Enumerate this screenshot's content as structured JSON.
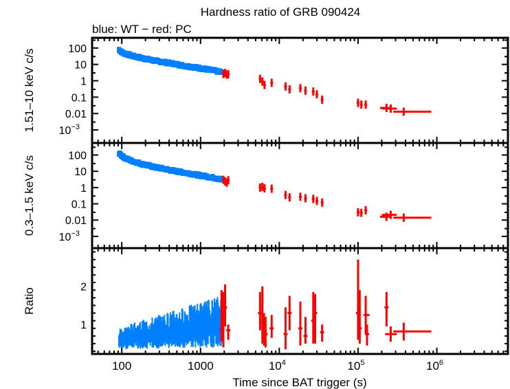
{
  "chart_data": {
    "type": "scatter",
    "title": "Hardness ratio of GRB 090424",
    "subtitle": "blue: WT − red: PC",
    "xlabel": "Time since BAT trigger (s)",
    "xscale": "log",
    "xlim": [
      42,
      8000000
    ],
    "x_ticks": [
      {
        "value": 100,
        "label": "100",
        "sup": ""
      },
      {
        "value": 1000,
        "label": "1000",
        "sup": ""
      },
      {
        "value": 10000,
        "label": "10",
        "sup": "4"
      },
      {
        "value": 100000,
        "label": "10",
        "sup": "5"
      },
      {
        "value": 1000000,
        "label": "10",
        "sup": "6"
      }
    ],
    "colors": {
      "WT": "#0080ff",
      "PC": "#ff0000",
      "frame": "#000000"
    },
    "legend": "top-left (subtitle text)",
    "panels": [
      {
        "name": "hard-band",
        "ylabel": "1.51–10 keV c/s",
        "yscale": "log",
        "ylim": [
          0.00016,
          420
        ],
        "y_ticks": [
          {
            "value": 100,
            "label": "100",
            "sup": ""
          },
          {
            "value": 10,
            "label": "10",
            "sup": ""
          },
          {
            "value": 1,
            "label": "1",
            "sup": ""
          },
          {
            "value": 0.1,
            "label": "0.1",
            "sup": ""
          },
          {
            "value": 0.01,
            "label": "0.01",
            "sup": ""
          },
          {
            "value": 0.001,
            "label": "10",
            "sup": "−3"
          }
        ],
        "series": [
          {
            "name": "WT",
            "x": [
              92,
              100,
              110,
              125,
              140,
              160,
              180,
              200,
              230,
              260,
              300,
              350,
              400,
              460,
              530,
              600,
              700,
              800,
              900,
              1000,
              1150,
              1300,
              1500,
              1700,
              1850
            ],
            "y": [
              80,
              55,
              45,
              38,
              32,
              28,
              24,
              22,
              19,
              17,
              15,
              13.5,
              12,
              11,
              9.5,
              8.5,
              7.5,
              7,
              6.3,
              5.8,
              5.2,
              4.6,
              4.2,
              3.6,
              3.3
            ]
          },
          {
            "name": "PC",
            "x": [
              1950,
              2050,
              2150,
              2250,
              5700,
              6100,
              6500,
              8000,
              12000,
              13500,
              18500,
              21500,
              27000,
              30000,
              35000,
              100000,
              110000,
              125000,
              230000,
              260000,
              380000
            ],
            "y": [
              2.6,
              3.0,
              2.4,
              2.5,
              1.3,
              0.9,
              0.55,
              0.75,
              0.45,
              0.3,
              0.35,
              0.25,
              0.22,
              0.15,
              0.07,
              0.045,
              0.035,
              0.035,
              0.022,
              0.02,
              0.013
            ],
            "xerr_lo": [
              0,
              0,
              0,
              0,
              0,
              0,
              0,
              0,
              0,
              0,
              0,
              0,
              0,
              0,
              0,
              0,
              0,
              0,
              40000,
              60000,
              100000
            ],
            "xerr_hi": [
              0,
              0,
              0,
              0,
              0,
              0,
              0,
              0,
              0,
              0,
              0,
              0,
              0,
              0,
              0,
              0,
              0,
              0,
              30000,
              50000,
              470000
            ]
          }
        ]
      },
      {
        "name": "soft-band",
        "ylabel": "0.3–1.5 keV c/s",
        "yscale": "log",
        "ylim": [
          0.00019,
          550
        ],
        "y_ticks": [
          {
            "value": 100,
            "label": "100",
            "sup": ""
          },
          {
            "value": 10,
            "label": "10",
            "sup": ""
          },
          {
            "value": 1,
            "label": "1",
            "sup": ""
          },
          {
            "value": 0.1,
            "label": "0.1",
            "sup": ""
          },
          {
            "value": 0.01,
            "label": "0.01",
            "sup": ""
          },
          {
            "value": 0.001,
            "label": "10",
            "sup": "−3"
          }
        ],
        "series": [
          {
            "name": "WT",
            "x": [
              92,
              100,
              110,
              125,
              140,
              160,
              180,
              200,
              230,
              260,
              300,
              350,
              400,
              460,
              530,
              600,
              700,
              800,
              900,
              1000,
              1150,
              1300,
              1500,
              1700,
              1850
            ],
            "y": [
              130,
              90,
              65,
              50,
              40,
              34,
              28,
              25,
              21,
              18,
              16,
              14,
              12,
              10.5,
              9.5,
              8.5,
              7.5,
              6.8,
              6,
              5.5,
              5,
              4.4,
              4,
              3.4,
              3.0
            ]
          },
          {
            "name": "PC",
            "x": [
              1950,
              2050,
              2150,
              2250,
              5700,
              6100,
              6500,
              8000,
              12000,
              13500,
              18500,
              21500,
              27000,
              30000,
              35000,
              100000,
              110000,
              125000,
              230000,
              260000,
              380000
            ],
            "y": [
              3.0,
              2.4,
              2.0,
              2.8,
              1.0,
              1.1,
              0.9,
              0.85,
              0.35,
              0.25,
              0.27,
              0.22,
              0.2,
              0.15,
              0.12,
              0.03,
              0.028,
              0.04,
              0.016,
              0.021,
              0.014
            ],
            "xerr_lo": [
              0,
              0,
              0,
              0,
              0,
              0,
              0,
              0,
              0,
              0,
              0,
              0,
              0,
              0,
              0,
              0,
              0,
              0,
              40000,
              60000,
              100000
            ],
            "xerr_hi": [
              0,
              0,
              0,
              0,
              0,
              0,
              0,
              0,
              0,
              0,
              0,
              0,
              0,
              0,
              0,
              0,
              0,
              0,
              30000,
              50000,
              470000
            ]
          }
        ]
      },
      {
        "name": "ratio",
        "ylabel": "Ratio",
        "yscale": "linear",
        "ylim": [
          0.23,
          3.0
        ],
        "y_ticks": [
          {
            "value": 1,
            "label": "1",
            "sup": ""
          },
          {
            "value": 2,
            "label": "2",
            "sup": ""
          }
        ],
        "series": [
          {
            "name": "WT",
            "x_range": [
              92,
              1850
            ],
            "mean_start": 0.6,
            "mean_end": 1.0,
            "spread_start": 0.25,
            "spread_end": 0.6
          },
          {
            "name": "PC",
            "x": [
              1850,
              1950,
              2050,
              2250,
              5700,
              6100,
              6400,
              6700,
              8000,
              12000,
              13500,
              18500,
              21500,
              27000,
              28500,
              35000,
              100000,
              105000,
              125000,
              130000,
              230000,
              260000,
              380000
            ],
            "y": [
              0.85,
              1.1,
              1.45,
              0.85,
              1.3,
              1.05,
              0.8,
              0.75,
              0.9,
              0.75,
              1.3,
              0.9,
              0.7,
              1.1,
              1.3,
              0.8,
              1.3,
              0.9,
              1.25,
              0.75,
              1.45,
              0.75,
              0.82
            ],
            "ylo": [
              0.55,
              0.4,
              0.95,
              0.6,
              0.85,
              0.5,
              0.45,
              0.4,
              0.65,
              0.35,
              0.85,
              0.45,
              0.5,
              0.5,
              0.5,
              0.55,
              0.6,
              0.5,
              0.75,
              0.45,
              0.95,
              0.55,
              0.58
            ],
            "yhi": [
              1.9,
              1.85,
              2.05,
              1.0,
              1.85,
              2.0,
              1.3,
              1.2,
              1.25,
              1.45,
              1.75,
              1.6,
              1.2,
              1.85,
              1.8,
              1.0,
              2.7,
              1.9,
              1.75,
              1.0,
              1.85,
              0.95,
              1.05
            ],
            "xerr_lo": [
              0,
              0,
              0,
              0,
              0,
              0,
              0,
              0,
              0,
              0,
              0,
              0,
              0,
              0,
              0,
              0,
              0,
              0,
              0,
              0,
              0,
              40000,
              100000
            ],
            "xerr_hi": [
              0,
              0,
              0,
              0,
              0,
              0,
              0,
              0,
              0,
              0,
              0,
              0,
              0,
              0,
              0,
              0,
              0,
              0,
              15000,
              0,
              0,
              50000,
              470000
            ]
          }
        ]
      }
    ]
  }
}
